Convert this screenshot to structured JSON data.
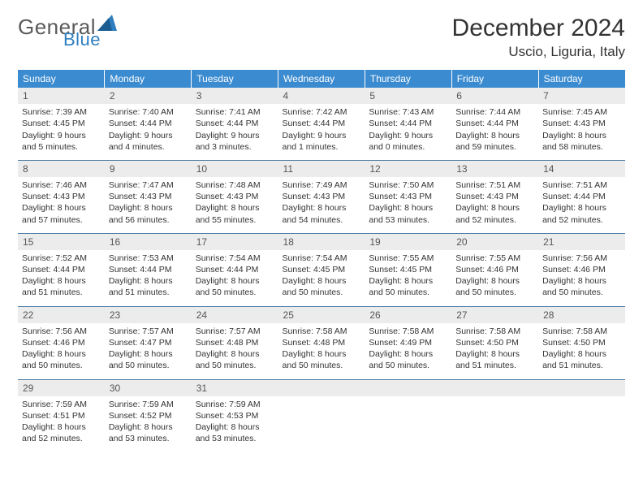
{
  "brand": {
    "general": "General",
    "blue": "Blue"
  },
  "header": {
    "month": "December 2024",
    "location": "Uscio, Liguria, Italy"
  },
  "colors": {
    "header_bg": "#3b8bd0",
    "header_text": "#ffffff",
    "daynum_bg": "#ececec",
    "rule": "#4f7fa8",
    "logo_gray": "#5a5a5a",
    "logo_blue": "#2f7fbf"
  },
  "dow": [
    "Sunday",
    "Monday",
    "Tuesday",
    "Wednesday",
    "Thursday",
    "Friday",
    "Saturday"
  ],
  "weeks": [
    [
      {
        "n": "1",
        "sr": "7:39 AM",
        "ss": "4:45 PM",
        "dh": "9",
        "dm": "5"
      },
      {
        "n": "2",
        "sr": "7:40 AM",
        "ss": "4:44 PM",
        "dh": "9",
        "dm": "4"
      },
      {
        "n": "3",
        "sr": "7:41 AM",
        "ss": "4:44 PM",
        "dh": "9",
        "dm": "3"
      },
      {
        "n": "4",
        "sr": "7:42 AM",
        "ss": "4:44 PM",
        "dh": "9",
        "dm": "1"
      },
      {
        "n": "5",
        "sr": "7:43 AM",
        "ss": "4:44 PM",
        "dh": "9",
        "dm": "0"
      },
      {
        "n": "6",
        "sr": "7:44 AM",
        "ss": "4:44 PM",
        "dh": "8",
        "dm": "59"
      },
      {
        "n": "7",
        "sr": "7:45 AM",
        "ss": "4:43 PM",
        "dh": "8",
        "dm": "58"
      }
    ],
    [
      {
        "n": "8",
        "sr": "7:46 AM",
        "ss": "4:43 PM",
        "dh": "8",
        "dm": "57"
      },
      {
        "n": "9",
        "sr": "7:47 AM",
        "ss": "4:43 PM",
        "dh": "8",
        "dm": "56"
      },
      {
        "n": "10",
        "sr": "7:48 AM",
        "ss": "4:43 PM",
        "dh": "8",
        "dm": "55"
      },
      {
        "n": "11",
        "sr": "7:49 AM",
        "ss": "4:43 PM",
        "dh": "8",
        "dm": "54"
      },
      {
        "n": "12",
        "sr": "7:50 AM",
        "ss": "4:43 PM",
        "dh": "8",
        "dm": "53"
      },
      {
        "n": "13",
        "sr": "7:51 AM",
        "ss": "4:43 PM",
        "dh": "8",
        "dm": "52"
      },
      {
        "n": "14",
        "sr": "7:51 AM",
        "ss": "4:44 PM",
        "dh": "8",
        "dm": "52"
      }
    ],
    [
      {
        "n": "15",
        "sr": "7:52 AM",
        "ss": "4:44 PM",
        "dh": "8",
        "dm": "51"
      },
      {
        "n": "16",
        "sr": "7:53 AM",
        "ss": "4:44 PM",
        "dh": "8",
        "dm": "51"
      },
      {
        "n": "17",
        "sr": "7:54 AM",
        "ss": "4:44 PM",
        "dh": "8",
        "dm": "50"
      },
      {
        "n": "18",
        "sr": "7:54 AM",
        "ss": "4:45 PM",
        "dh": "8",
        "dm": "50"
      },
      {
        "n": "19",
        "sr": "7:55 AM",
        "ss": "4:45 PM",
        "dh": "8",
        "dm": "50"
      },
      {
        "n": "20",
        "sr": "7:55 AM",
        "ss": "4:46 PM",
        "dh": "8",
        "dm": "50"
      },
      {
        "n": "21",
        "sr": "7:56 AM",
        "ss": "4:46 PM",
        "dh": "8",
        "dm": "50"
      }
    ],
    [
      {
        "n": "22",
        "sr": "7:56 AM",
        "ss": "4:46 PM",
        "dh": "8",
        "dm": "50"
      },
      {
        "n": "23",
        "sr": "7:57 AM",
        "ss": "4:47 PM",
        "dh": "8",
        "dm": "50"
      },
      {
        "n": "24",
        "sr": "7:57 AM",
        "ss": "4:48 PM",
        "dh": "8",
        "dm": "50"
      },
      {
        "n": "25",
        "sr": "7:58 AM",
        "ss": "4:48 PM",
        "dh": "8",
        "dm": "50"
      },
      {
        "n": "26",
        "sr": "7:58 AM",
        "ss": "4:49 PM",
        "dh": "8",
        "dm": "50"
      },
      {
        "n": "27",
        "sr": "7:58 AM",
        "ss": "4:50 PM",
        "dh": "8",
        "dm": "51"
      },
      {
        "n": "28",
        "sr": "7:58 AM",
        "ss": "4:50 PM",
        "dh": "8",
        "dm": "51"
      }
    ],
    [
      {
        "n": "29",
        "sr": "7:59 AM",
        "ss": "4:51 PM",
        "dh": "8",
        "dm": "52"
      },
      {
        "n": "30",
        "sr": "7:59 AM",
        "ss": "4:52 PM",
        "dh": "8",
        "dm": "53"
      },
      {
        "n": "31",
        "sr": "7:59 AM",
        "ss": "4:53 PM",
        "dh": "8",
        "dm": "53"
      },
      null,
      null,
      null,
      null
    ]
  ],
  "labels": {
    "sunrise_prefix": "Sunrise: ",
    "sunset_prefix": "Sunset: ",
    "daylight_prefix": "Daylight: ",
    "hours_word": " hours",
    "and_word": "and ",
    "minutes_word": " minutes."
  }
}
